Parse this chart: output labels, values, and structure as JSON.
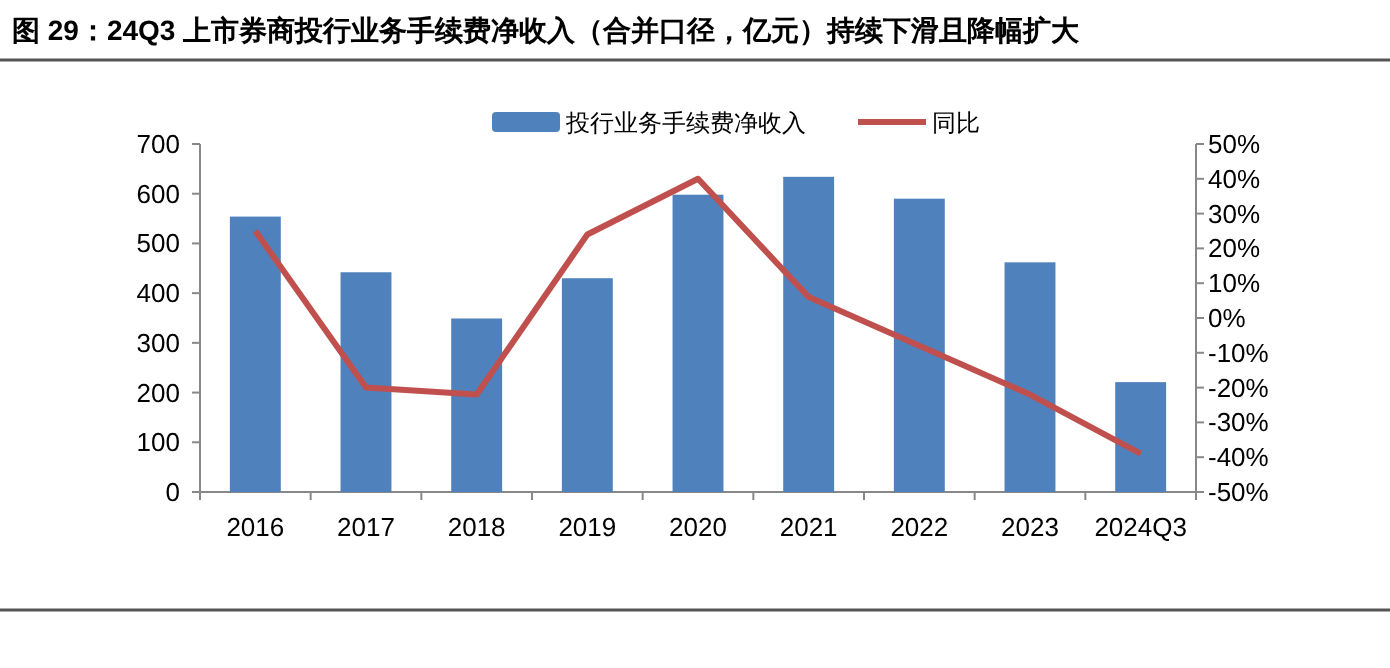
{
  "chart_data": {
    "type": "bar",
    "title": "图 29：24Q3 上市券商投行业务手续费净收入（合并口径，亿元）持续下滑且降幅扩大",
    "categories": [
      "2016",
      "2017",
      "2018",
      "2019",
      "2020",
      "2021",
      "2022",
      "2023",
      "2024Q3"
    ],
    "series": [
      {
        "name": "投行业务手续费净收入",
        "color": "#4f81bd",
        "values": [
          554,
          442,
          349,
          430,
          598,
          634,
          590,
          462,
          221
        ]
      },
      {
        "name": "同比",
        "type": "line",
        "axis": "y2",
        "color": "#c0504d",
        "values": [
          25,
          -20,
          -22,
          24,
          40,
          6,
          -8,
          -22,
          -39
        ]
      }
    ],
    "ylim": [
      0,
      700
    ],
    "yticks": [
      0,
      100,
      200,
      300,
      400,
      500,
      600,
      700
    ],
    "y2lim": [
      -50,
      50
    ],
    "y2ticks": [
      {
        "value": -50,
        "label": "-50%"
      },
      {
        "value": -40,
        "label": "-40%"
      },
      {
        "value": -30,
        "label": "-30%"
      },
      {
        "value": -20,
        "label": "-20%"
      },
      {
        "value": -10,
        "label": "-10%"
      },
      {
        "value": 0,
        "label": "0%"
      },
      {
        "value": 10,
        "label": "10%"
      },
      {
        "value": 20,
        "label": "20%"
      },
      {
        "value": 30,
        "label": "30%"
      },
      {
        "value": 40,
        "label": "40%"
      },
      {
        "value": 50,
        "label": "50%"
      }
    ],
    "grid": false,
    "legend": "top"
  }
}
